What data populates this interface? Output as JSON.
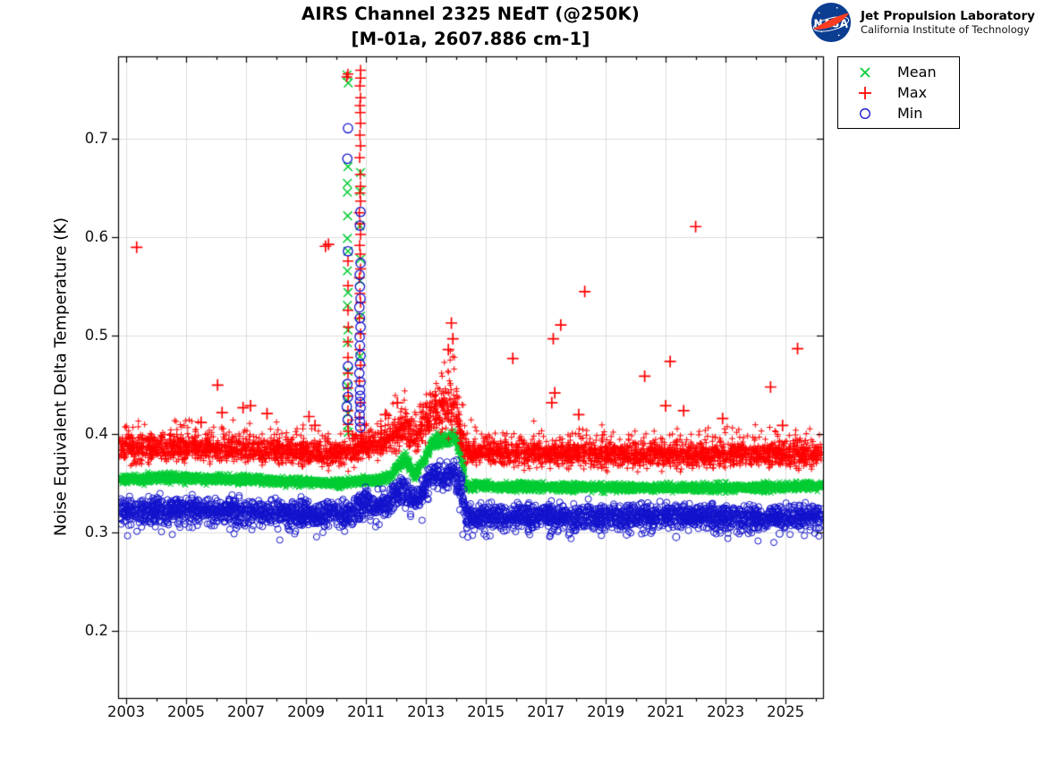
{
  "logo": {
    "agency": "NASA",
    "org_line1": "Jet Propulsion Laboratory",
    "org_line2": "California Institute of Technology"
  },
  "legend": {
    "position": "northeast-outside",
    "items": [
      {
        "label": "Mean",
        "marker": "x",
        "color": "#00cc33"
      },
      {
        "label": "Max",
        "marker": "+",
        "color": "#ff0000"
      },
      {
        "label": "Min",
        "marker": "o",
        "color": "#1111cc"
      }
    ]
  },
  "chart_data": {
    "type": "scatter",
    "title": "AIRS Channel 2325 NEdT (@250K)",
    "subtitle": "[M-01a, 2607.886 cm-1]",
    "xlabel": "",
    "ylabel": "Noise Equivalent Delta Temperature (K)",
    "xlim": [
      2002.73,
      2026.25
    ],
    "ylim": [
      0.132,
      0.784
    ],
    "x_ticks_labeled": [
      2003,
      2005,
      2007,
      2009,
      2011,
      2013,
      2015,
      2017,
      2019,
      2021,
      2023,
      2025
    ],
    "x_ticks_minor": [
      2004,
      2006,
      2008,
      2010,
      2012,
      2014,
      2016,
      2018,
      2020,
      2022,
      2024,
      2026
    ],
    "y_ticks": [
      0.2,
      0.3,
      0.4,
      0.5,
      0.6,
      0.7
    ],
    "grid": true,
    "colors": {
      "grid": "#dcdcdc",
      "axis": "#000000"
    },
    "series": [
      {
        "name": "Mean",
        "marker": "x",
        "color": "#00cc33",
        "points_per_year": 175,
        "band_envelope": [
          [
            2002.78,
            0.354,
            0.0045
          ],
          [
            2004.5,
            0.356,
            0.0045
          ],
          [
            2007.0,
            0.354,
            0.0042
          ],
          [
            2009.0,
            0.3515,
            0.004
          ],
          [
            2010.3,
            0.3505,
            0.004
          ],
          [
            2010.95,
            0.3525,
            0.0042
          ],
          [
            2011.35,
            0.3535,
            0.0045
          ],
          [
            2011.8,
            0.357,
            0.0048
          ],
          [
            2012.3,
            0.3755,
            0.006
          ],
          [
            2012.65,
            0.358,
            0.005
          ],
          [
            2012.9,
            0.372,
            0.0065
          ],
          [
            2013.2,
            0.39,
            0.0065
          ],
          [
            2013.6,
            0.3945,
            0.0065
          ],
          [
            2013.95,
            0.3975,
            0.0065
          ],
          [
            2014.15,
            0.383,
            0.0095
          ],
          [
            2014.35,
            0.3475,
            0.0042
          ],
          [
            2016.0,
            0.3465,
            0.004
          ],
          [
            2019.0,
            0.346,
            0.004
          ],
          [
            2022.0,
            0.3455,
            0.004
          ],
          [
            2024.5,
            0.346,
            0.004
          ],
          [
            2026.2,
            0.348,
            0.004
          ]
        ],
        "spike_points": [
          [
            2010.37,
            0.765
          ],
          [
            2010.41,
            0.757
          ],
          [
            2010.4,
            0.672
          ],
          [
            2010.82,
            0.666
          ],
          [
            2010.38,
            0.655
          ],
          [
            2010.8,
            0.647
          ],
          [
            2010.38,
            0.646
          ],
          [
            2010.39,
            0.622
          ],
          [
            2010.8,
            0.612
          ],
          [
            2010.38,
            0.599
          ],
          [
            2010.4,
            0.586
          ],
          [
            2010.82,
            0.578
          ],
          [
            2010.38,
            0.566
          ],
          [
            2010.8,
            0.556
          ],
          [
            2010.4,
            0.544
          ],
          [
            2010.38,
            0.531
          ],
          [
            2010.82,
            0.52
          ],
          [
            2010.4,
            0.506
          ],
          [
            2010.38,
            0.493
          ],
          [
            2010.8,
            0.479
          ],
          [
            2010.4,
            0.464
          ],
          [
            2010.38,
            0.449
          ],
          [
            2010.36,
            0.435
          ],
          [
            2010.4,
            0.421
          ],
          [
            2010.38,
            0.409
          ],
          [
            2010.41,
            0.402
          ]
        ],
        "outliers": []
      },
      {
        "name": "Max",
        "marker": "+",
        "color": "#ff0000",
        "points_per_year": 175,
        "band_envelope": [
          [
            2002.78,
            0.3845,
            0.0125
          ],
          [
            2004.5,
            0.387,
            0.0125
          ],
          [
            2007.0,
            0.385,
            0.012
          ],
          [
            2009.0,
            0.3815,
            0.011
          ],
          [
            2010.3,
            0.38,
            0.011
          ],
          [
            2010.95,
            0.39,
            0.0125
          ],
          [
            2011.35,
            0.389,
            0.012
          ],
          [
            2011.8,
            0.396,
            0.0135
          ],
          [
            2012.3,
            0.407,
            0.0175
          ],
          [
            2012.65,
            0.394,
            0.0125
          ],
          [
            2012.9,
            0.409,
            0.016
          ],
          [
            2013.2,
            0.424,
            0.0195
          ],
          [
            2013.6,
            0.428,
            0.0215
          ],
          [
            2013.95,
            0.433,
            0.0235
          ],
          [
            2014.15,
            0.405,
            0.018
          ],
          [
            2014.35,
            0.383,
            0.011
          ],
          [
            2016.0,
            0.381,
            0.011
          ],
          [
            2019.0,
            0.38,
            0.011
          ],
          [
            2022.0,
            0.3795,
            0.011
          ],
          [
            2024.5,
            0.379,
            0.011
          ],
          [
            2026.2,
            0.38,
            0.011
          ]
        ],
        "spike_points": [
          [
            2010.82,
            0.77
          ],
          [
            2010.4,
            0.766
          ],
          [
            2010.36,
            0.763
          ],
          [
            2010.82,
            0.762
          ],
          [
            2010.8,
            0.754
          ],
          [
            2010.82,
            0.742
          ],
          [
            2010.8,
            0.734
          ],
          [
            2010.81,
            0.727
          ],
          [
            2010.82,
            0.716
          ],
          [
            2010.8,
            0.704
          ],
          [
            2010.82,
            0.693
          ],
          [
            2010.79,
            0.681
          ],
          [
            2010.81,
            0.664
          ],
          [
            2010.82,
            0.652
          ],
          [
            2010.8,
            0.645
          ],
          [
            2010.82,
            0.637
          ],
          [
            2010.78,
            0.625
          ],
          [
            2010.8,
            0.614
          ],
          [
            2010.82,
            0.603
          ],
          [
            2010.79,
            0.592
          ],
          [
            2010.81,
            0.583
          ],
          [
            2010.4,
            0.576
          ],
          [
            2010.82,
            0.568
          ],
          [
            2010.78,
            0.559
          ],
          [
            2010.4,
            0.551
          ],
          [
            2010.8,
            0.543
          ],
          [
            2010.82,
            0.534
          ],
          [
            2010.4,
            0.526
          ],
          [
            2010.78,
            0.518
          ],
          [
            2010.41,
            0.509
          ],
          [
            2010.82,
            0.502
          ],
          [
            2010.4,
            0.494
          ],
          [
            2010.79,
            0.486
          ],
          [
            2010.4,
            0.478
          ],
          [
            2010.82,
            0.47
          ],
          [
            2010.4,
            0.462
          ],
          [
            2010.78,
            0.454
          ],
          [
            2010.4,
            0.447
          ],
          [
            2010.41,
            0.439
          ],
          [
            2010.82,
            0.432
          ],
          [
            2010.4,
            0.424
          ],
          [
            2010.79,
            0.417
          ],
          [
            2010.4,
            0.41
          ],
          [
            2010.41,
            0.403
          ]
        ],
        "outliers": [
          [
            2003.35,
            0.59
          ],
          [
            2005.5,
            0.412
          ],
          [
            2006.05,
            0.45
          ],
          [
            2006.2,
            0.422
          ],
          [
            2006.9,
            0.427
          ],
          [
            2007.15,
            0.429
          ],
          [
            2007.7,
            0.421
          ],
          [
            2009.1,
            0.418
          ],
          [
            2009.3,
            0.409
          ],
          [
            2009.65,
            0.591
          ],
          [
            2009.75,
            0.593
          ],
          [
            2011.65,
            0.42
          ],
          [
            2012.05,
            0.432
          ],
          [
            2013.75,
            0.486
          ],
          [
            2013.85,
            0.513
          ],
          [
            2013.9,
            0.497
          ],
          [
            2015.9,
            0.477
          ],
          [
            2017.2,
            0.432
          ],
          [
            2017.25,
            0.497
          ],
          [
            2017.3,
            0.442
          ],
          [
            2017.5,
            0.511
          ],
          [
            2018.1,
            0.42
          ],
          [
            2018.3,
            0.545
          ],
          [
            2020.3,
            0.459
          ],
          [
            2021.0,
            0.429
          ],
          [
            2021.15,
            0.474
          ],
          [
            2021.6,
            0.424
          ],
          [
            2022.0,
            0.611
          ],
          [
            2022.9,
            0.416
          ],
          [
            2024.5,
            0.448
          ],
          [
            2024.9,
            0.409
          ],
          [
            2025.4,
            0.487
          ]
        ]
      },
      {
        "name": "Min",
        "marker": "o",
        "color": "#1111cc",
        "points_per_year": 135,
        "band_envelope": [
          [
            2002.78,
            0.322,
            0.012
          ],
          [
            2004.5,
            0.3235,
            0.012
          ],
          [
            2007.0,
            0.3215,
            0.0112
          ],
          [
            2009.0,
            0.319,
            0.011
          ],
          [
            2010.3,
            0.3185,
            0.011
          ],
          [
            2010.95,
            0.332,
            0.013
          ],
          [
            2011.35,
            0.325,
            0.012
          ],
          [
            2011.8,
            0.333,
            0.013
          ],
          [
            2012.3,
            0.3455,
            0.0135
          ],
          [
            2012.65,
            0.331,
            0.011
          ],
          [
            2012.9,
            0.344,
            0.012
          ],
          [
            2013.2,
            0.3595,
            0.0115
          ],
          [
            2013.6,
            0.3575,
            0.0115
          ],
          [
            2013.95,
            0.361,
            0.012
          ],
          [
            2014.15,
            0.347,
            0.017
          ],
          [
            2014.35,
            0.3165,
            0.0105
          ],
          [
            2016.0,
            0.3165,
            0.0105
          ],
          [
            2019.0,
            0.316,
            0.0105
          ],
          [
            2022.0,
            0.3155,
            0.0105
          ],
          [
            2024.5,
            0.3155,
            0.0105
          ],
          [
            2026.2,
            0.3175,
            0.0105
          ]
        ],
        "spike_points": [
          [
            2010.4,
            0.711
          ],
          [
            2010.38,
            0.68
          ],
          [
            2010.82,
            0.626
          ],
          [
            2010.8,
            0.612
          ],
          [
            2010.4,
            0.586
          ],
          [
            2010.82,
            0.574
          ],
          [
            2010.79,
            0.562
          ],
          [
            2010.8,
            0.55
          ],
          [
            2010.82,
            0.538
          ],
          [
            2010.78,
            0.529
          ],
          [
            2010.8,
            0.518
          ],
          [
            2010.82,
            0.509
          ],
          [
            2010.79,
            0.499
          ],
          [
            2010.8,
            0.49
          ],
          [
            2010.82,
            0.48
          ],
          [
            2010.8,
            0.471
          ],
          [
            2010.78,
            0.462
          ],
          [
            2010.82,
            0.453
          ],
          [
            2010.8,
            0.445
          ],
          [
            2010.81,
            0.439
          ],
          [
            2010.8,
            0.433
          ],
          [
            2010.82,
            0.427
          ],
          [
            2010.79,
            0.42
          ],
          [
            2010.8,
            0.413
          ],
          [
            2010.81,
            0.407
          ],
          [
            2010.4,
            0.469
          ],
          [
            2010.38,
            0.451
          ],
          [
            2010.4,
            0.438
          ],
          [
            2010.36,
            0.428
          ],
          [
            2010.39,
            0.415
          ]
        ],
        "outliers": [
          [
            2015.6,
            0.302
          ],
          [
            2017.8,
            0.3
          ],
          [
            2019.7,
            0.298
          ],
          [
            2021.35,
            0.2955
          ],
          [
            2023.5,
            0.302
          ],
          [
            2024.8,
            0.299
          ]
        ]
      }
    ]
  }
}
